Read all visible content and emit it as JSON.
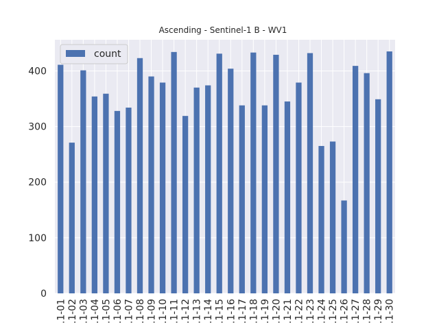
{
  "chart_data": {
    "type": "bar",
    "title": "Ascending - Sentinel-1 B - WV1",
    "xlabel": "",
    "ylabel": "",
    "categories": [
      ".1-01",
      ".1-02",
      ".1-03",
      ".1-04",
      ".1-05",
      ".1-06",
      ".1-07",
      ".1-08",
      ".1-09",
      ".1-10",
      ".1-11",
      ".1-12",
      ".1-13",
      ".1-14",
      ".1-15",
      ".1-16",
      ".1-17",
      ".1-18",
      ".1-19",
      ".1-20",
      ".1-21",
      ".1-22",
      ".1-23",
      ".1-24",
      ".1-25",
      ".1-26",
      ".1-27",
      ".1-28",
      ".1-29",
      ".1-30"
    ],
    "series": [
      {
        "name": "count",
        "values": [
          411,
          271,
          401,
          354,
          359,
          328,
          334,
          423,
          390,
          379,
          434,
          319,
          370,
          374,
          431,
          404,
          338,
          433,
          338,
          429,
          345,
          379,
          432,
          265,
          273,
          167,
          409,
          396,
          349,
          435
        ]
      }
    ],
    "yticks": [
      0,
      100,
      200,
      300,
      400
    ],
    "ylim": [
      0,
      456
    ],
    "grid": true,
    "legend_position": "top-left",
    "colors": {
      "bar": "#4c72b0",
      "axes_bg": "#eaeaf2",
      "grid": "#ffffff"
    }
  }
}
